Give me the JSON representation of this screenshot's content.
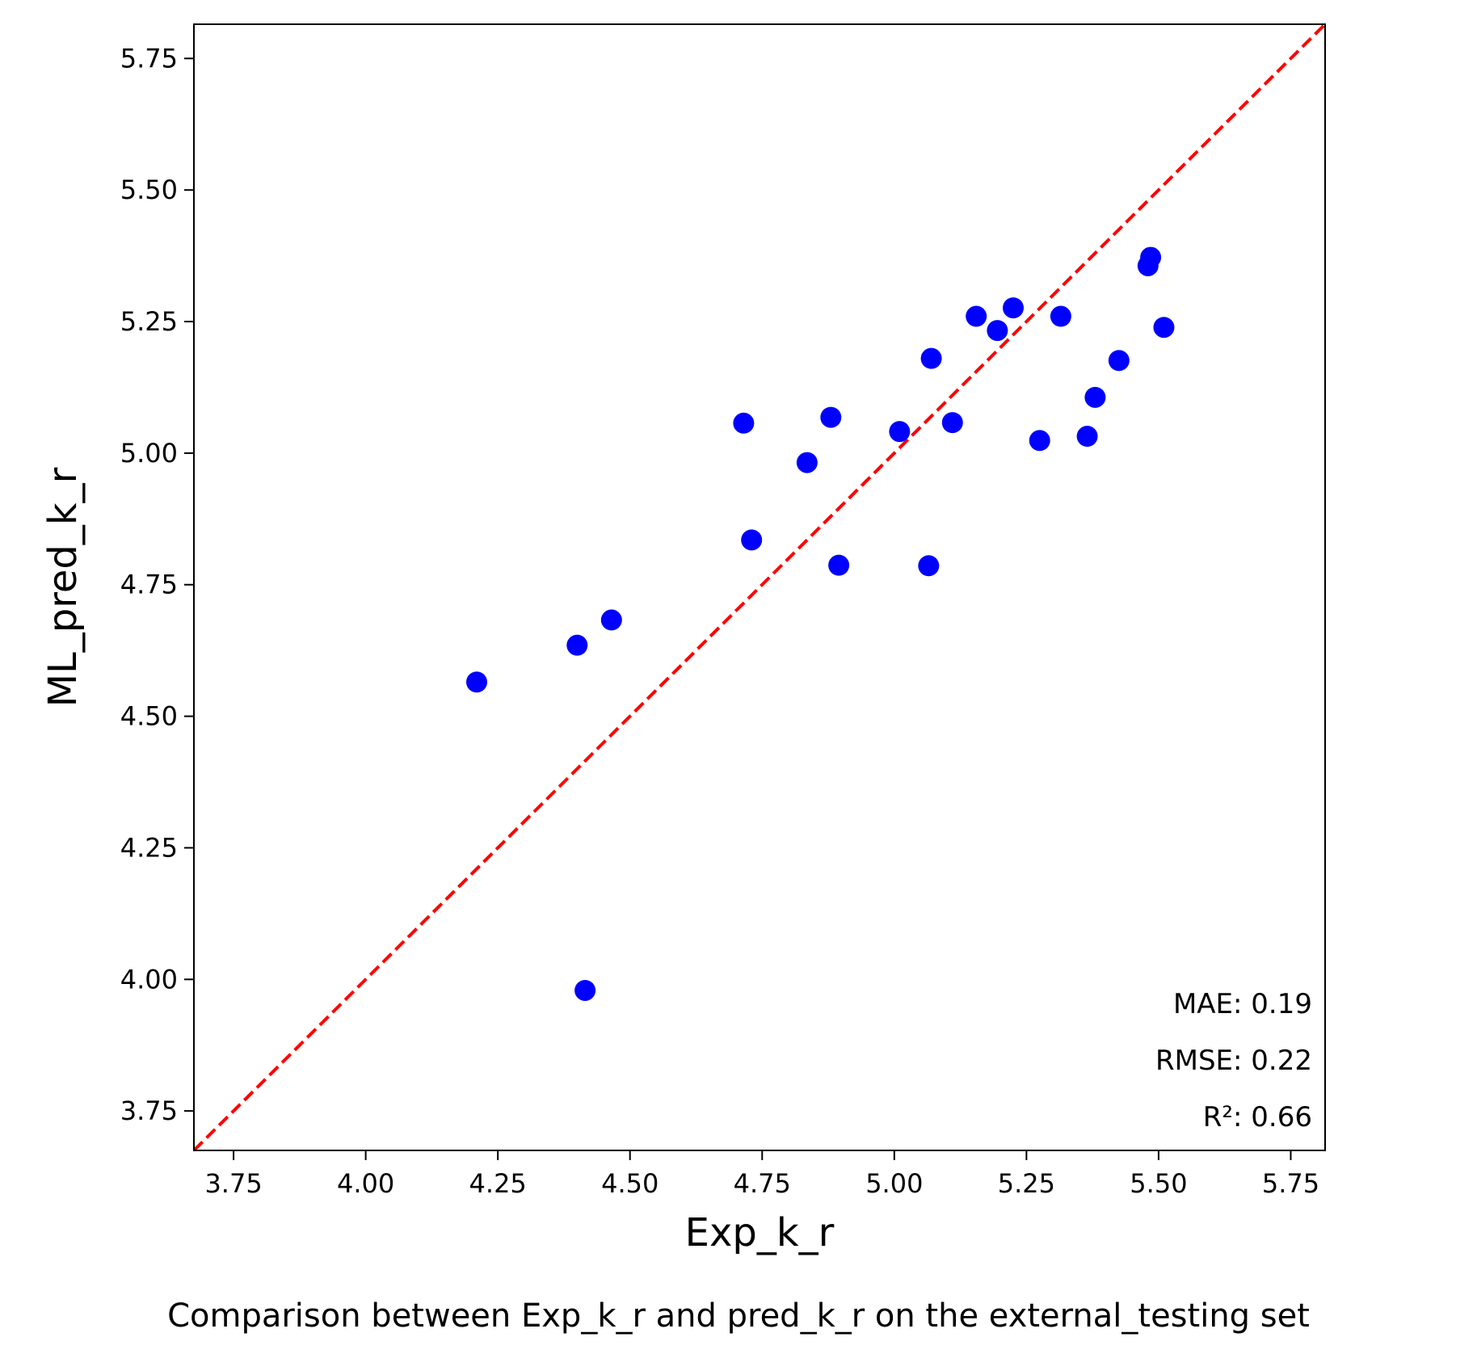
{
  "chart_data": {
    "type": "scatter",
    "title": "",
    "xlabel": "Exp_k_r",
    "ylabel": "ML_pred_k_r",
    "caption": "Comparison between Exp_k_r and pred_k_r on the external_testing set",
    "xlim": [
      3.675,
      5.815
    ],
    "ylim": [
      3.675,
      5.815
    ],
    "xticks": [
      "3.75",
      "4.00",
      "4.25",
      "4.50",
      "4.75",
      "5.00",
      "5.25",
      "5.50",
      "5.75"
    ],
    "yticks": [
      "3.75",
      "4.00",
      "4.25",
      "4.50",
      "4.75",
      "5.00",
      "5.25",
      "5.50",
      "5.75"
    ],
    "grid": false,
    "reference_line": {
      "style": "dashed",
      "color": "#ff0000",
      "slope": 1,
      "intercept": 0
    },
    "point_color": "#0000ff",
    "points": [
      {
        "x": 4.21,
        "y": 4.565
      },
      {
        "x": 4.4,
        "y": 4.635
      },
      {
        "x": 4.465,
        "y": 4.683
      },
      {
        "x": 4.415,
        "y": 3.979
      },
      {
        "x": 4.715,
        "y": 5.057
      },
      {
        "x": 4.73,
        "y": 4.835
      },
      {
        "x": 4.835,
        "y": 4.982
      },
      {
        "x": 4.88,
        "y": 5.068
      },
      {
        "x": 4.895,
        "y": 4.787
      },
      {
        "x": 5.01,
        "y": 5.041
      },
      {
        "x": 5.065,
        "y": 4.786
      },
      {
        "x": 5.07,
        "y": 5.18
      },
      {
        "x": 5.11,
        "y": 5.058
      },
      {
        "x": 5.155,
        "y": 5.26
      },
      {
        "x": 5.195,
        "y": 5.233
      },
      {
        "x": 5.225,
        "y": 5.276
      },
      {
        "x": 5.275,
        "y": 5.024
      },
      {
        "x": 5.315,
        "y": 5.26
      },
      {
        "x": 5.365,
        "y": 5.032
      },
      {
        "x": 5.38,
        "y": 5.106
      },
      {
        "x": 5.425,
        "y": 5.176
      },
      {
        "x": 5.48,
        "y": 5.356
      },
      {
        "x": 5.485,
        "y": 5.372
      },
      {
        "x": 5.51,
        "y": 5.239
      }
    ],
    "annotations": [
      "MAE: 0.19",
      "RMSE: 0.22",
      "R²: 0.66"
    ]
  }
}
